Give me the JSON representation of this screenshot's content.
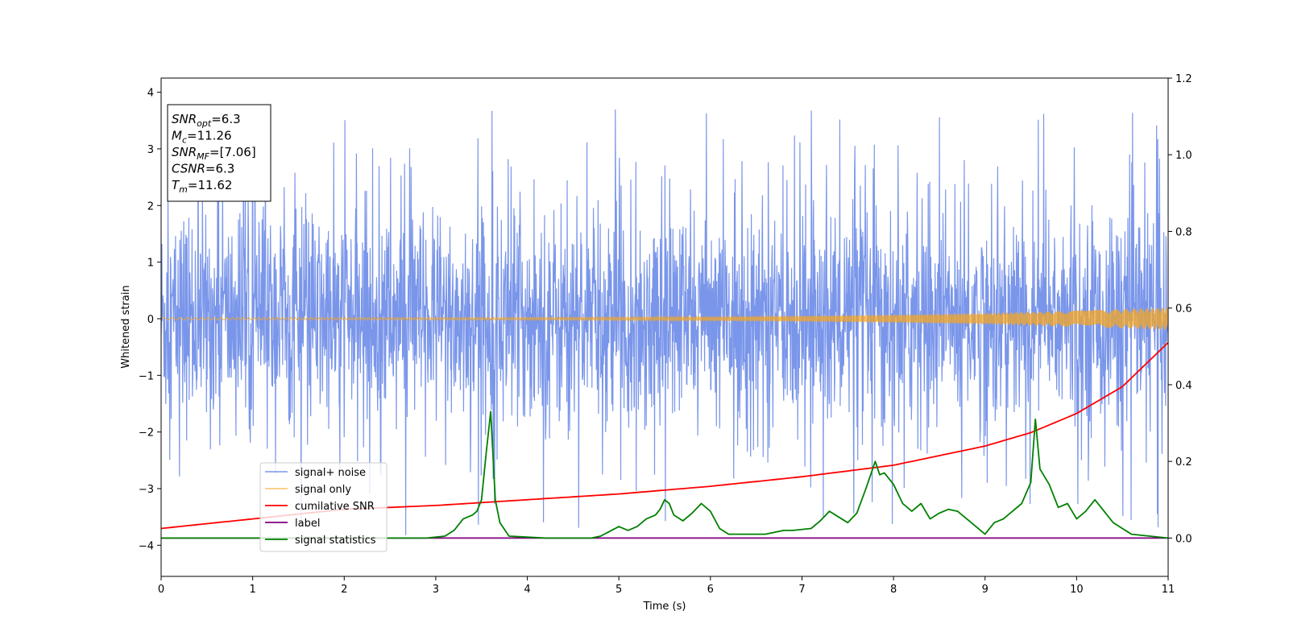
{
  "chart_data": {
    "type": "line",
    "xlabel": "Time (s)",
    "ylabel": "Whitened strain",
    "xlim": [
      0,
      11
    ],
    "ylim_left": [
      -4.55,
      4.25
    ],
    "ylim_right": [
      -0.1,
      1.2
    ],
    "xticks": [
      "0",
      "1",
      "2",
      "3",
      "4",
      "5",
      "6",
      "7",
      "8",
      "9",
      "10",
      "11"
    ],
    "yticks_left": [
      "4",
      "3",
      "2",
      "1",
      "0",
      "−1",
      "−2",
      "−3",
      "−4"
    ],
    "yticks_right": [
      "1.2",
      "1.0",
      "0.8",
      "0.6",
      "0.4",
      "0.2",
      "0.0"
    ],
    "grid": false,
    "legend_position": "lower-left",
    "info_box": {
      "lines": [
        {
          "label": "SNR",
          "sub": "opt",
          "value": "=6.3"
        },
        {
          "label": "M",
          "sub": "c",
          "value": "=11.26"
        },
        {
          "label": "SNR",
          "sub": "MF",
          "value": "=[7.06]"
        },
        {
          "label": "CSNR",
          "sub": "",
          "value": "=6.3"
        },
        {
          "label": "T",
          "sub": "m",
          "value": "=11.62"
        }
      ]
    },
    "series": [
      {
        "name": "signal+ noise",
        "axis": "left",
        "color": "#4169e1",
        "style": "dense noise",
        "band": [
          -2.0,
          2.4
        ],
        "extremes": [
          -4.2,
          3.9
        ]
      },
      {
        "name": "signal only",
        "axis": "left",
        "color": "#f5a623",
        "style": "chirp",
        "amplitude_start": 0.02,
        "amplitude_end": 0.2
      },
      {
        "name": "cumilative SNR",
        "axis": "right",
        "color": "#ff0000",
        "x": [
          0,
          1,
          2,
          3,
          4,
          5,
          6,
          7,
          8,
          9,
          9.5,
          10,
          10.5,
          11
        ],
        "values": [
          0.025,
          0.05,
          0.075,
          0.085,
          0.1,
          0.115,
          0.135,
          0.16,
          0.19,
          0.24,
          0.275,
          0.325,
          0.395,
          0.51
        ]
      },
      {
        "name": "label",
        "axis": "right",
        "color": "#800080",
        "x": [
          0,
          11
        ],
        "values": [
          0.0,
          0.0
        ]
      },
      {
        "name": "signal statistics",
        "axis": "right",
        "color": "#008000",
        "x": [
          0,
          2,
          2.9,
          3.1,
          3.2,
          3.3,
          3.4,
          3.45,
          3.5,
          3.55,
          3.6,
          3.65,
          3.7,
          3.8,
          4.2,
          4.7,
          4.8,
          5.0,
          5.1,
          5.2,
          5.3,
          5.4,
          5.45,
          5.5,
          5.55,
          5.6,
          5.7,
          5.8,
          5.9,
          6.0,
          6.1,
          6.2,
          6.4,
          6.6,
          6.8,
          6.9,
          7.1,
          7.2,
          7.3,
          7.4,
          7.5,
          7.6,
          7.7,
          7.8,
          7.85,
          7.9,
          8.0,
          8.1,
          8.2,
          8.3,
          8.4,
          8.5,
          8.6,
          8.7,
          8.8,
          8.9,
          9.0,
          9.1,
          9.2,
          9.3,
          9.4,
          9.5,
          9.55,
          9.6,
          9.7,
          9.8,
          9.9,
          10.0,
          10.1,
          10.2,
          10.4,
          10.6,
          11
        ],
        "values": [
          0.0,
          0.0,
          0.0,
          0.005,
          0.02,
          0.05,
          0.06,
          0.07,
          0.1,
          0.22,
          0.33,
          0.1,
          0.04,
          0.005,
          0.0,
          0.0,
          0.005,
          0.03,
          0.02,
          0.03,
          0.05,
          0.06,
          0.075,
          0.1,
          0.09,
          0.06,
          0.045,
          0.065,
          0.09,
          0.07,
          0.025,
          0.01,
          0.01,
          0.01,
          0.02,
          0.02,
          0.025,
          0.045,
          0.07,
          0.055,
          0.04,
          0.065,
          0.13,
          0.2,
          0.165,
          0.17,
          0.14,
          0.09,
          0.07,
          0.09,
          0.05,
          0.065,
          0.075,
          0.07,
          0.05,
          0.03,
          0.01,
          0.04,
          0.05,
          0.07,
          0.09,
          0.145,
          0.31,
          0.18,
          0.14,
          0.08,
          0.09,
          0.05,
          0.07,
          0.1,
          0.04,
          0.01,
          0.0
        ]
      }
    ]
  }
}
